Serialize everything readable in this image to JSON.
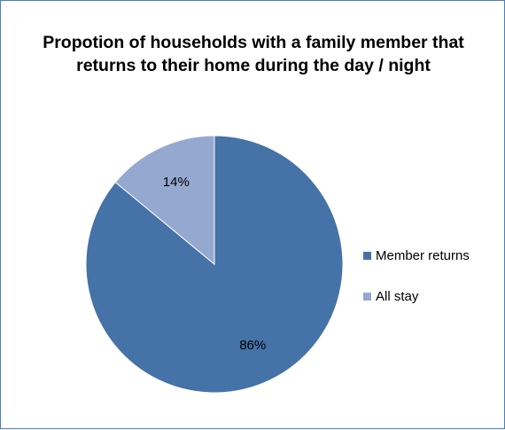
{
  "chart_data": {
    "type": "pie",
    "title": "Propotion of households with a family member that returns to their home during the day / night",
    "slices": [
      {
        "name": "Member returns",
        "value": 86,
        "label": "86%",
        "color": "#4572a7"
      },
      {
        "name": "All stay",
        "value": 14,
        "label": "14%",
        "color": "#95a9d0"
      }
    ],
    "start_angle_deg": 0,
    "direction": "clockwise",
    "legend": {
      "position": "right"
    }
  }
}
